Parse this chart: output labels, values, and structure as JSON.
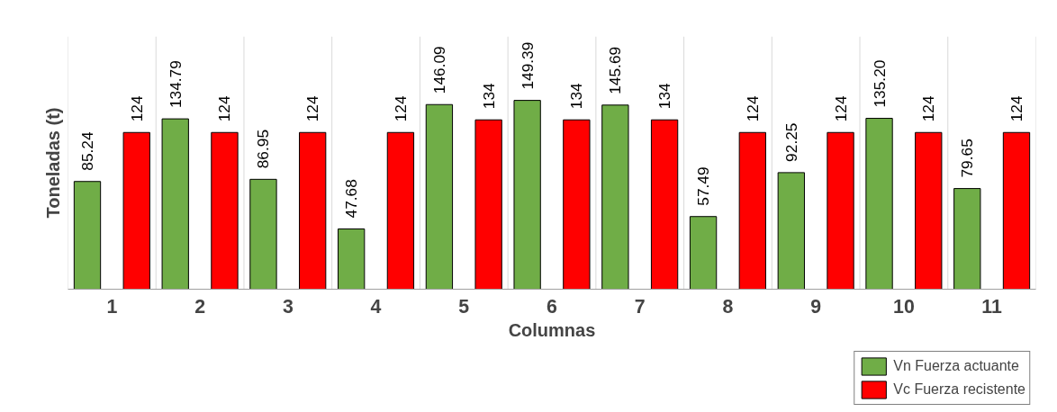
{
  "chart_data": {
    "type": "bar",
    "xlabel": "Columnas",
    "ylabel": "Toneladas (t)",
    "categories": [
      "1",
      "2",
      "3",
      "4",
      "5",
      "6",
      "7",
      "8",
      "9",
      "10",
      "11"
    ],
    "series": [
      {
        "name": "Vn Fuerza actuante",
        "color": "#70ad47",
        "values": [
          85.24,
          134.79,
          86.95,
          47.68,
          146.09,
          149.39,
          145.69,
          57.49,
          92.25,
          135.2,
          79.65
        ],
        "value_labels": [
          "85.24",
          "134.79",
          "86.95",
          "47.68",
          "146.09",
          "149.39",
          "145.69",
          "57.49",
          "92.25",
          "135.20",
          "79.65"
        ]
      },
      {
        "name": "Vc Fuerza recistente",
        "color": "#ff0000",
        "values": [
          124,
          124,
          124,
          124,
          134,
          134,
          134,
          124,
          124,
          124,
          124
        ]
      }
    ],
    "ylim": [
      0,
      200
    ],
    "tick_labels": "x",
    "data_labels": true,
    "grid": "x",
    "legend": "bottom right"
  }
}
